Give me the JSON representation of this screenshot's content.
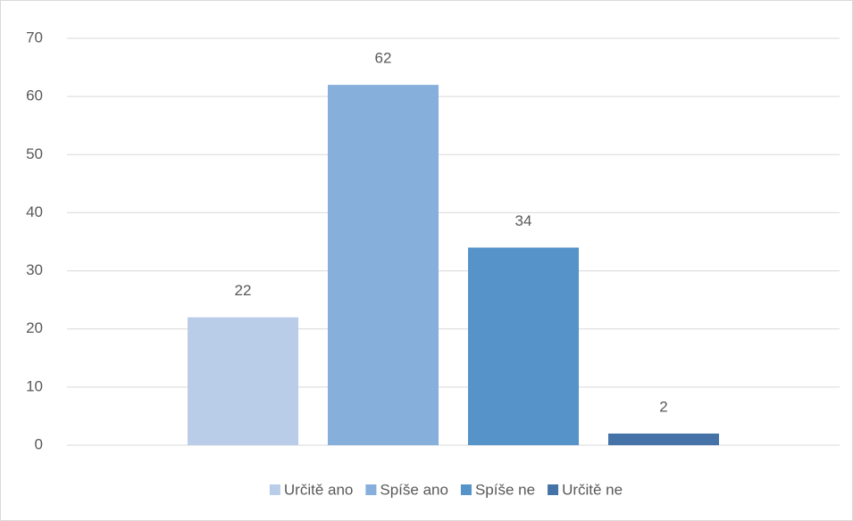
{
  "chart_data": {
    "type": "bar",
    "categories": [
      null
    ],
    "series": [
      {
        "name": "Určitě ano",
        "color": "#b9cde9",
        "values": [
          22
        ]
      },
      {
        "name": "Spíše ano",
        "color": "#86afdc",
        "values": [
          62
        ]
      },
      {
        "name": "Spíše ne",
        "color": "#5593c8",
        "values": [
          34
        ]
      },
      {
        "name": "Určitě ne",
        "color": "#4673a7",
        "values": [
          2
        ]
      }
    ],
    "ylim": [
      0,
      70
    ],
    "yticks": [
      0,
      10,
      20,
      30,
      40,
      50,
      60,
      70
    ],
    "grid": true,
    "legend": "bottom"
  }
}
